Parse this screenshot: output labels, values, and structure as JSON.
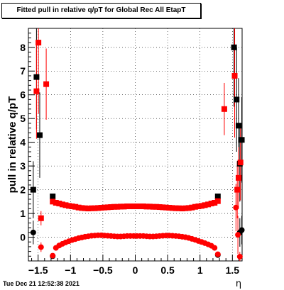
{
  "chart_data": {
    "type": "scatter",
    "title": "Fitted pull in relative q/pT for Global Rec All EtapT",
    "xlabel": "η",
    "ylabel": "pull in relative q/pT",
    "xlim": [
      -1.65,
      1.65
    ],
    "ylim": [
      -1.0,
      8.8
    ],
    "x_ticks": [
      -1.5,
      -1,
      -0.5,
      0,
      0.5,
      1,
      1.5
    ],
    "x_tick_labels": [
      "−1.5",
      "−1",
      "−0.5",
      "0",
      "0.5",
      "1",
      "1.5"
    ],
    "y_ticks": [
      0,
      1,
      2,
      3,
      4,
      5,
      6,
      7,
      8
    ],
    "y_tick_labels": [
      "0",
      "1",
      "2",
      "3",
      "4",
      "5",
      "6",
      "7",
      "8"
    ],
    "grid": true,
    "series": [
      {
        "color": "#000000",
        "marker": "square",
        "points": [
          {
            "x": -1.575,
            "y": 2.0,
            "err": 1.2
          },
          {
            "x": -1.525,
            "y": 6.75,
            "err": 2.2
          },
          {
            "x": -1.475,
            "y": 4.3,
            "err": 1.8
          },
          {
            "x": -1.275,
            "y": 1.72,
            "err": 0.05
          },
          {
            "x": 1.275,
            "y": 1.72,
            "err": 0.05
          },
          {
            "x": 1.525,
            "y": 8.0,
            "err": 2.5
          },
          {
            "x": 1.565,
            "y": 5.8,
            "err": 2.2
          },
          {
            "x": 1.595,
            "y": 4.7,
            "err": 2.0
          },
          {
            "x": 1.615,
            "y": 3.1,
            "err": 1.6
          },
          {
            "x": 1.645,
            "y": 4.1,
            "err": 1.8
          }
        ]
      },
      {
        "color": "#000000",
        "marker": "circle",
        "points": [
          {
            "x": -1.575,
            "y": 0.2,
            "err": 0.5
          },
          {
            "x": -1.275,
            "y": -0.8,
            "err": 0.05
          },
          {
            "x": 1.275,
            "y": -0.75,
            "err": 0.05
          },
          {
            "x": 1.615,
            "y": 0.2,
            "err": 0.6
          },
          {
            "x": 1.645,
            "y": 0.3,
            "err": 0.6
          }
        ]
      },
      {
        "color": "#ff0000",
        "marker": "square",
        "points": [
          {
            "x": -1.525,
            "y": 6.15,
            "err": 2.0
          },
          {
            "x": -1.495,
            "y": 8.2,
            "err": 3.0
          },
          {
            "x": -1.455,
            "y": 0.8,
            "err": 0.3
          },
          {
            "x": -1.375,
            "y": 6.45,
            "err": 1.5
          },
          {
            "x": -1.275,
            "y": 1.5,
            "err": 0.05
          },
          {
            "x": -1.225,
            "y": 1.45,
            "err": 0.04
          },
          {
            "x": -1.175,
            "y": 1.42,
            "err": 0.04
          },
          {
            "x": -1.125,
            "y": 1.38,
            "err": 0.04
          },
          {
            "x": -1.075,
            "y": 1.35,
            "err": 0.04
          },
          {
            "x": -1.025,
            "y": 1.32,
            "err": 0.04
          },
          {
            "x": -0.975,
            "y": 1.3,
            "err": 0.04
          },
          {
            "x": -0.925,
            "y": 1.28,
            "err": 0.04
          },
          {
            "x": -0.875,
            "y": 1.25,
            "err": 0.04
          },
          {
            "x": -0.825,
            "y": 1.23,
            "err": 0.04
          },
          {
            "x": -0.775,
            "y": 1.22,
            "err": 0.04
          },
          {
            "x": -0.725,
            "y": 1.21,
            "err": 0.04
          },
          {
            "x": -0.675,
            "y": 1.22,
            "err": 0.04
          },
          {
            "x": -0.625,
            "y": 1.22,
            "err": 0.04
          },
          {
            "x": -0.575,
            "y": 1.23,
            "err": 0.04
          },
          {
            "x": -0.525,
            "y": 1.24,
            "err": 0.04
          },
          {
            "x": -0.475,
            "y": 1.25,
            "err": 0.04
          },
          {
            "x": -0.425,
            "y": 1.26,
            "err": 0.04
          },
          {
            "x": -0.375,
            "y": 1.27,
            "err": 0.04
          },
          {
            "x": -0.325,
            "y": 1.28,
            "err": 0.04
          },
          {
            "x": -0.275,
            "y": 1.28,
            "err": 0.04
          },
          {
            "x": -0.225,
            "y": 1.29,
            "err": 0.04
          },
          {
            "x": -0.175,
            "y": 1.29,
            "err": 0.04
          },
          {
            "x": -0.125,
            "y": 1.3,
            "err": 0.04
          },
          {
            "x": -0.075,
            "y": 1.3,
            "err": 0.04
          },
          {
            "x": -0.025,
            "y": 1.3,
            "err": 0.04
          },
          {
            "x": 0.025,
            "y": 1.3,
            "err": 0.04
          },
          {
            "x": 0.075,
            "y": 1.3,
            "err": 0.04
          },
          {
            "x": 0.125,
            "y": 1.3,
            "err": 0.04
          },
          {
            "x": 0.175,
            "y": 1.29,
            "err": 0.04
          },
          {
            "x": 0.225,
            "y": 1.29,
            "err": 0.04
          },
          {
            "x": 0.275,
            "y": 1.28,
            "err": 0.04
          },
          {
            "x": 0.325,
            "y": 1.28,
            "err": 0.04
          },
          {
            "x": 0.375,
            "y": 1.27,
            "err": 0.04
          },
          {
            "x": 0.425,
            "y": 1.26,
            "err": 0.04
          },
          {
            "x": 0.475,
            "y": 1.25,
            "err": 0.04
          },
          {
            "x": 0.525,
            "y": 1.24,
            "err": 0.04
          },
          {
            "x": 0.575,
            "y": 1.23,
            "err": 0.04
          },
          {
            "x": 0.625,
            "y": 1.22,
            "err": 0.04
          },
          {
            "x": 0.675,
            "y": 1.22,
            "err": 0.04
          },
          {
            "x": 0.725,
            "y": 1.21,
            "err": 0.04
          },
          {
            "x": 0.775,
            "y": 1.22,
            "err": 0.04
          },
          {
            "x": 0.825,
            "y": 1.23,
            "err": 0.04
          },
          {
            "x": 0.875,
            "y": 1.25,
            "err": 0.04
          },
          {
            "x": 0.925,
            "y": 1.28,
            "err": 0.04
          },
          {
            "x": 0.975,
            "y": 1.3,
            "err": 0.04
          },
          {
            "x": 1.025,
            "y": 1.32,
            "err": 0.04
          },
          {
            "x": 1.075,
            "y": 1.35,
            "err": 0.04
          },
          {
            "x": 1.125,
            "y": 1.38,
            "err": 0.04
          },
          {
            "x": 1.175,
            "y": 1.42,
            "err": 0.04
          },
          {
            "x": 1.225,
            "y": 1.45,
            "err": 0.04
          },
          {
            "x": 1.275,
            "y": 1.52,
            "err": 0.05
          },
          {
            "x": 1.375,
            "y": 5.4,
            "err": 1.1
          },
          {
            "x": 1.535,
            "y": 6.8,
            "err": 2.6
          },
          {
            "x": 1.575,
            "y": 2.0,
            "err": 1.2
          },
          {
            "x": 1.595,
            "y": 2.5,
            "err": 1.3
          },
          {
            "x": 1.625,
            "y": 3.15,
            "err": 1.6
          }
        ]
      },
      {
        "color": "#ff0000",
        "marker": "circle",
        "points": [
          {
            "x": -1.455,
            "y": -0.42,
            "err": 0.2
          },
          {
            "x": -1.275,
            "y": -0.78,
            "err": 0.05
          },
          {
            "x": -1.225,
            "y": -0.45,
            "err": 0.04
          },
          {
            "x": -1.175,
            "y": -0.35,
            "err": 0.04
          },
          {
            "x": -1.125,
            "y": -0.28,
            "err": 0.04
          },
          {
            "x": -1.075,
            "y": -0.22,
            "err": 0.04
          },
          {
            "x": -1.025,
            "y": -0.17,
            "err": 0.04
          },
          {
            "x": -0.975,
            "y": -0.12,
            "err": 0.04
          },
          {
            "x": -0.925,
            "y": -0.08,
            "err": 0.04
          },
          {
            "x": -0.875,
            "y": -0.04,
            "err": 0.04
          },
          {
            "x": -0.825,
            "y": -0.01,
            "err": 0.04
          },
          {
            "x": -0.775,
            "y": 0.02,
            "err": 0.04
          },
          {
            "x": -0.725,
            "y": 0.04,
            "err": 0.04
          },
          {
            "x": -0.675,
            "y": 0.06,
            "err": 0.04
          },
          {
            "x": -0.625,
            "y": 0.07,
            "err": 0.04
          },
          {
            "x": -0.575,
            "y": 0.08,
            "err": 0.04
          },
          {
            "x": -0.525,
            "y": 0.08,
            "err": 0.04
          },
          {
            "x": -0.475,
            "y": 0.07,
            "err": 0.04
          },
          {
            "x": -0.425,
            "y": 0.06,
            "err": 0.04
          },
          {
            "x": -0.375,
            "y": 0.05,
            "err": 0.04
          },
          {
            "x": -0.325,
            "y": 0.04,
            "err": 0.04
          },
          {
            "x": -0.275,
            "y": 0.03,
            "err": 0.04
          },
          {
            "x": -0.225,
            "y": 0.03,
            "err": 0.04
          },
          {
            "x": -0.175,
            "y": 0.04,
            "err": 0.04
          },
          {
            "x": -0.125,
            "y": 0.05,
            "err": 0.04
          },
          {
            "x": -0.075,
            "y": 0.05,
            "err": 0.04
          },
          {
            "x": -0.025,
            "y": 0.05,
            "err": 0.04
          },
          {
            "x": 0.025,
            "y": 0.05,
            "err": 0.04
          },
          {
            "x": 0.075,
            "y": 0.05,
            "err": 0.04
          },
          {
            "x": 0.125,
            "y": 0.05,
            "err": 0.04
          },
          {
            "x": 0.175,
            "y": 0.04,
            "err": 0.04
          },
          {
            "x": 0.225,
            "y": 0.03,
            "err": 0.04
          },
          {
            "x": 0.275,
            "y": 0.03,
            "err": 0.04
          },
          {
            "x": 0.325,
            "y": 0.04,
            "err": 0.04
          },
          {
            "x": 0.375,
            "y": 0.05,
            "err": 0.04
          },
          {
            "x": 0.425,
            "y": 0.06,
            "err": 0.04
          },
          {
            "x": 0.475,
            "y": 0.07,
            "err": 0.04
          },
          {
            "x": 0.525,
            "y": 0.07,
            "err": 0.04
          },
          {
            "x": 0.575,
            "y": 0.06,
            "err": 0.04
          },
          {
            "x": 0.625,
            "y": 0.05,
            "err": 0.04
          },
          {
            "x": 0.675,
            "y": 0.04,
            "err": 0.04
          },
          {
            "x": 0.725,
            "y": 0.02,
            "err": 0.04
          },
          {
            "x": 0.775,
            "y": 0.0,
            "err": 0.04
          },
          {
            "x": 0.825,
            "y": -0.03,
            "err": 0.04
          },
          {
            "x": 0.875,
            "y": -0.07,
            "err": 0.04
          },
          {
            "x": 0.925,
            "y": -0.11,
            "err": 0.04
          },
          {
            "x": 0.975,
            "y": -0.16,
            "err": 0.04
          },
          {
            "x": 1.025,
            "y": -0.2,
            "err": 0.04
          },
          {
            "x": 1.075,
            "y": -0.25,
            "err": 0.04
          },
          {
            "x": 1.125,
            "y": -0.3,
            "err": 0.04
          },
          {
            "x": 1.175,
            "y": -0.36,
            "err": 0.04
          },
          {
            "x": 1.225,
            "y": -0.45,
            "err": 0.04
          },
          {
            "x": 1.275,
            "y": -0.72,
            "err": 0.05
          },
          {
            "x": 1.555,
            "y": 1.25,
            "err": 1.0
          },
          {
            "x": 1.585,
            "y": 0.1,
            "err": 0.8
          },
          {
            "x": 1.615,
            "y": -0.82,
            "err": 0.2
          }
        ]
      }
    ]
  },
  "footer": {
    "timestamp": "Tue Dec 21 12:52:38 2021"
  }
}
